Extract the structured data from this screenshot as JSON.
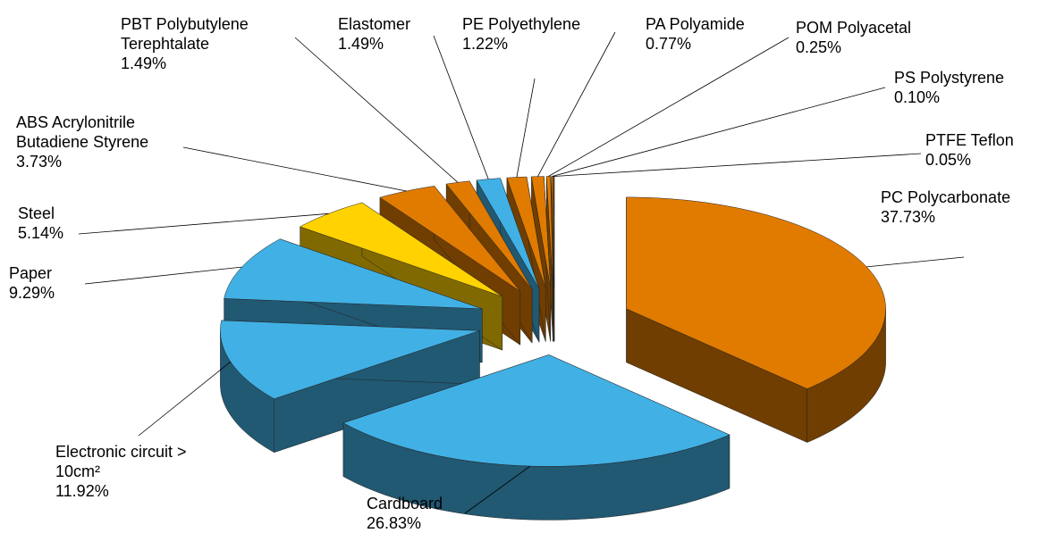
{
  "chart_data": {
    "type": "pie3d",
    "categories": [
      "PC Polycarbonate",
      "Cardboard",
      "Electronic circuit > 10cm²",
      "Paper",
      "Steel",
      "ABS Acrylonitrile Butadiene Styrene",
      "PBT Polybutylene Terephtalate",
      "Elastomer",
      "PE Polyethylene",
      "PA Polyamide",
      "POM Polyacetal",
      "PS Polystyrene",
      "PTFE Teflon"
    ],
    "values": [
      37.73,
      26.83,
      11.92,
      9.29,
      5.14,
      3.73,
      1.49,
      1.49,
      1.22,
      0.77,
      0.25,
      0.1,
      0.05
    ],
    "value_labels": [
      "37.73%",
      "26.83%",
      "11.92%",
      "9.29%",
      "5.14%",
      "3.73%",
      "1.49%",
      "1.49%",
      "1.22%",
      "0.77%",
      "0.25%",
      "0.10%",
      "0.05%"
    ],
    "colors": [
      "#E07B00",
      "#41B0E4",
      "#41B0E4",
      "#41B0E4",
      "#FFD200",
      "#E07B00",
      "#E07B00",
      "#41B0E4",
      "#E07B00",
      "#E07B00",
      "#E07B00",
      "#E07B00",
      "#E07B00"
    ]
  }
}
